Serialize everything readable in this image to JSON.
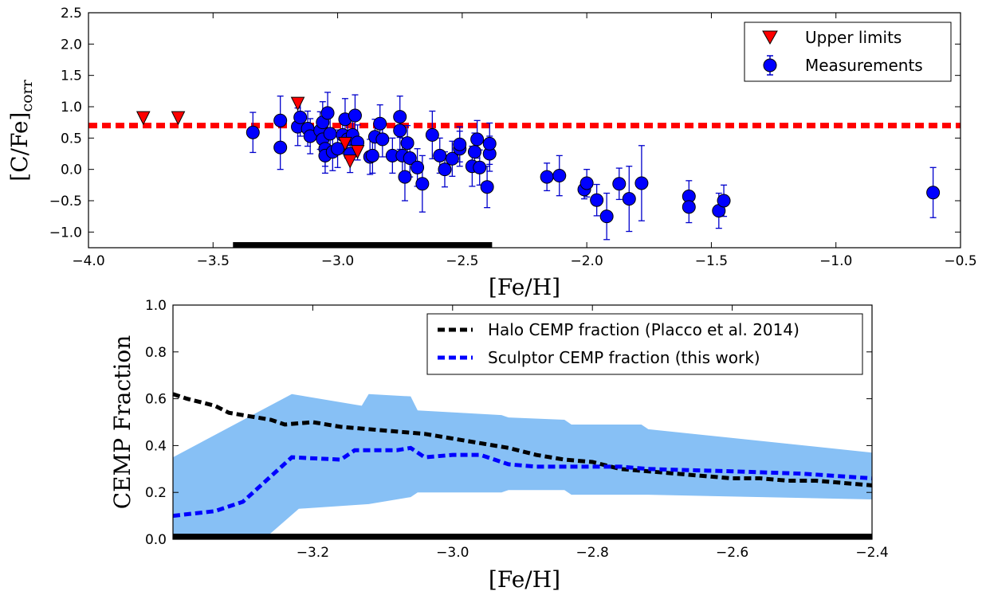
{
  "chart_data": [
    {
      "type": "scatter",
      "xlabel": "[Fe/H]",
      "ylabel": "[C/Fe]",
      "ylabel_sub": "corr",
      "xlim": [
        -4.0,
        -0.5
      ],
      "ylim": [
        -1.25,
        2.5
      ],
      "xticks": [
        "−4.0",
        "−3.5",
        "−3.0",
        "−2.5",
        "−2.0",
        "−1.5",
        "−1.0",
        "−0.5"
      ],
      "xtick_values": [
        -4.0,
        -3.5,
        -3.0,
        -2.5,
        -2.0,
        -1.5,
        -1.0,
        -0.5
      ],
      "yticks": [
        "−1.0",
        "−0.5",
        "0.0",
        "0.5",
        "1.0",
        "1.5",
        "2.0",
        "2.5"
      ],
      "ytick_values": [
        -1.0,
        -0.5,
        0.0,
        0.5,
        1.0,
        1.5,
        2.0,
        2.5
      ],
      "reference_line": {
        "y": 0.7,
        "style": "dashed",
        "color": "#ff0000"
      },
      "range_bar": {
        "x": [
          -3.42,
          -2.38
        ],
        "color": "#000000"
      },
      "legend": {
        "position": "top-right",
        "entries": [
          "Upper limits",
          "Measurements"
        ]
      },
      "series": [
        {
          "name": "Upper limits",
          "marker": "triangle-down",
          "color": "#ff0000",
          "points": [
            {
              "x": -3.78,
              "y": 0.82
            },
            {
              "x": -3.64,
              "y": 0.82
            },
            {
              "x": -3.16,
              "y": 1.05
            },
            {
              "x": -2.97,
              "y": 0.41
            },
            {
              "x": -2.95,
              "y": 0.13
            },
            {
              "x": -2.92,
              "y": 0.28
            }
          ]
        },
        {
          "name": "Measurements",
          "marker": "circle",
          "color": "#0000ff",
          "error_color": "#0000cc",
          "points": [
            {
              "x": -3.34,
              "y": 0.59,
              "err": 0.32
            },
            {
              "x": -3.23,
              "y": 0.78,
              "err": 0.39
            },
            {
              "x": -3.23,
              "y": 0.35,
              "err": 0.35
            },
            {
              "x": -3.16,
              "y": 0.68,
              "err": 0.3
            },
            {
              "x": -3.15,
              "y": 0.83,
              "err": 0.3
            },
            {
              "x": -3.12,
              "y": 0.65,
              "err": 0.28
            },
            {
              "x": -3.11,
              "y": 0.53,
              "err": 0.28
            },
            {
              "x": -3.07,
              "y": 0.62,
              "err": 0.3
            },
            {
              "x": -3.06,
              "y": 0.48,
              "err": 0.3
            },
            {
              "x": -3.06,
              "y": 0.75,
              "err": 0.33
            },
            {
              "x": -3.05,
              "y": 0.33,
              "err": 0.28
            },
            {
              "x": -3.05,
              "y": 0.22,
              "err": 0.28
            },
            {
              "x": -3.04,
              "y": 0.9,
              "err": 0.33
            },
            {
              "x": -3.03,
              "y": 0.57,
              "err": 0.3
            },
            {
              "x": -3.02,
              "y": 0.28,
              "err": 0.3
            },
            {
              "x": -3.0,
              "y": 0.33,
              "err": 0.3
            },
            {
              "x": -2.98,
              "y": 0.55,
              "err": 0.3
            },
            {
              "x": -2.97,
              "y": 0.8,
              "err": 0.33
            },
            {
              "x": -2.96,
              "y": 0.48,
              "err": 0.3
            },
            {
              "x": -2.95,
              "y": 0.25,
              "err": 0.3
            },
            {
              "x": -2.94,
              "y": 0.55,
              "err": 0.28
            },
            {
              "x": -2.93,
              "y": 0.86,
              "err": 0.33
            },
            {
              "x": -2.92,
              "y": 0.43,
              "err": 0.28
            },
            {
              "x": -2.87,
              "y": 0.2,
              "err": 0.28
            },
            {
              "x": -2.86,
              "y": 0.22,
              "err": 0.28
            },
            {
              "x": -2.85,
              "y": 0.52,
              "err": 0.28
            },
            {
              "x": -2.83,
              "y": 0.73,
              "err": 0.3
            },
            {
              "x": -2.82,
              "y": 0.48,
              "err": 0.28
            },
            {
              "x": -2.78,
              "y": 0.22,
              "err": 0.28
            },
            {
              "x": -2.75,
              "y": 0.84,
              "err": 0.33
            },
            {
              "x": -2.75,
              "y": 0.62,
              "err": 0.3
            },
            {
              "x": -2.74,
              "y": 0.22,
              "err": 0.28
            },
            {
              "x": -2.73,
              "y": -0.12,
              "err": 0.38
            },
            {
              "x": -2.72,
              "y": 0.42,
              "err": 0.28
            },
            {
              "x": -2.71,
              "y": 0.18,
              "err": 0.3
            },
            {
              "x": -2.68,
              "y": 0.03,
              "err": 0.3
            },
            {
              "x": -2.66,
              "y": -0.23,
              "err": 0.45
            },
            {
              "x": -2.62,
              "y": 0.55,
              "err": 0.38
            },
            {
              "x": -2.59,
              "y": 0.22,
              "err": 0.28
            },
            {
              "x": -2.57,
              "y": 0.0,
              "err": 0.28
            },
            {
              "x": -2.54,
              "y": 0.17,
              "err": 0.28
            },
            {
              "x": -2.51,
              "y": 0.33,
              "err": 0.28
            },
            {
              "x": -2.51,
              "y": 0.4,
              "err": 0.28
            },
            {
              "x": -2.46,
              "y": 0.05,
              "err": 0.32
            },
            {
              "x": -2.45,
              "y": 0.28,
              "err": 0.3
            },
            {
              "x": -2.44,
              "y": 0.48,
              "err": 0.3
            },
            {
              "x": -2.43,
              "y": 0.03,
              "err": 0.28
            },
            {
              "x": -2.4,
              "y": -0.28,
              "err": 0.33
            },
            {
              "x": -2.39,
              "y": 0.25,
              "err": 0.28
            },
            {
              "x": -2.39,
              "y": 0.41,
              "err": 0.33
            },
            {
              "x": -2.16,
              "y": -0.12,
              "err": 0.22
            },
            {
              "x": -2.11,
              "y": -0.1,
              "err": 0.32
            },
            {
              "x": -2.01,
              "y": -0.32,
              "err": 0.15
            },
            {
              "x": -2.0,
              "y": -0.22,
              "err": 0.22
            },
            {
              "x": -1.96,
              "y": -0.49,
              "err": 0.25
            },
            {
              "x": -1.92,
              "y": -0.75,
              "err": 0.37
            },
            {
              "x": -1.87,
              "y": -0.23,
              "err": 0.25
            },
            {
              "x": -1.83,
              "y": -0.47,
              "err": 0.52
            },
            {
              "x": -1.78,
              "y": -0.22,
              "err": 0.6
            },
            {
              "x": -1.59,
              "y": -0.43,
              "err": 0.25
            },
            {
              "x": -1.59,
              "y": -0.6,
              "err": 0.25
            },
            {
              "x": -1.47,
              "y": -0.66,
              "err": 0.28
            },
            {
              "x": -1.45,
              "y": -0.5,
              "err": 0.25
            },
            {
              "x": -0.61,
              "y": -0.37,
              "err": 0.4
            }
          ]
        }
      ]
    },
    {
      "type": "line",
      "xlabel": "[Fe/H]",
      "ylabel": "CEMP Fraction",
      "xlim": [
        -3.4,
        -2.4
      ],
      "ylim": [
        0.0,
        1.0
      ],
      "xticks": [
        "−3.2",
        "−3.0",
        "−2.8",
        "−2.6",
        "−2.4"
      ],
      "xtick_values": [
        -3.2,
        -3.0,
        -2.8,
        -2.6,
        -2.4
      ],
      "yticks": [
        "0.0",
        "0.2",
        "0.4",
        "0.6",
        "0.8",
        "1.0"
      ],
      "ytick_values": [
        0.0,
        0.2,
        0.4,
        0.6,
        0.8,
        1.0
      ],
      "legend": {
        "position": "top-right",
        "entries": [
          "Halo CEMP fraction (Placco et al. 2014)",
          "Sculptor CEMP fraction (this work)"
        ]
      },
      "band": {
        "color": "#87c0f5",
        "upper": [
          [
            -3.4,
            0.35
          ],
          [
            -3.23,
            0.62
          ],
          [
            -3.13,
            0.57
          ],
          [
            -3.12,
            0.62
          ],
          [
            -3.06,
            0.61
          ],
          [
            -3.05,
            0.55
          ],
          [
            -2.93,
            0.53
          ],
          [
            -2.92,
            0.52
          ],
          [
            -2.84,
            0.51
          ],
          [
            -2.83,
            0.49
          ],
          [
            -2.73,
            0.49
          ],
          [
            -2.72,
            0.47
          ],
          [
            -2.4,
            0.37
          ]
        ],
        "lower": [
          [
            -3.4,
            0.0
          ],
          [
            -3.27,
            0.0
          ],
          [
            -3.22,
            0.13
          ],
          [
            -3.12,
            0.15
          ],
          [
            -3.06,
            0.18
          ],
          [
            -3.05,
            0.2
          ],
          [
            -2.93,
            0.2
          ],
          [
            -2.92,
            0.21
          ],
          [
            -2.84,
            0.21
          ],
          [
            -2.83,
            0.19
          ],
          [
            -2.73,
            0.19
          ],
          [
            -2.72,
            0.19
          ],
          [
            -2.4,
            0.17
          ]
        ]
      },
      "range_bar": {
        "x": [
          -3.4,
          -2.4
        ],
        "color": "#000000"
      },
      "series": [
        {
          "name": "Halo CEMP fraction (Placco et al. 2014)",
          "color": "#000000",
          "style": "dashed",
          "x": [
            -3.4,
            -3.38,
            -3.34,
            -3.32,
            -3.3,
            -3.28,
            -3.26,
            -3.24,
            -3.2,
            -3.16,
            -3.12,
            -3.08,
            -3.04,
            -3.0,
            -2.96,
            -2.92,
            -2.88,
            -2.84,
            -2.8,
            -2.76,
            -2.72,
            -2.68,
            -2.64,
            -2.6,
            -2.56,
            -2.52,
            -2.48,
            -2.44,
            -2.4
          ],
          "values": [
            0.62,
            0.6,
            0.57,
            0.54,
            0.53,
            0.52,
            0.51,
            0.49,
            0.5,
            0.48,
            0.47,
            0.46,
            0.45,
            0.43,
            0.41,
            0.39,
            0.36,
            0.34,
            0.33,
            0.3,
            0.29,
            0.28,
            0.27,
            0.26,
            0.26,
            0.25,
            0.25,
            0.24,
            0.23
          ]
        },
        {
          "name": "Sculptor CEMP fraction (this work)",
          "color": "#0000ff",
          "style": "dashed",
          "x": [
            -3.4,
            -3.34,
            -3.3,
            -3.23,
            -3.16,
            -3.14,
            -3.08,
            -3.06,
            -3.04,
            -3.0,
            -2.96,
            -2.94,
            -2.92,
            -2.88,
            -2.84,
            -2.8,
            -2.76,
            -2.72,
            -2.6,
            -2.5,
            -2.4
          ],
          "values": [
            0.1,
            0.12,
            0.16,
            0.35,
            0.34,
            0.38,
            0.38,
            0.39,
            0.35,
            0.36,
            0.36,
            0.34,
            0.32,
            0.31,
            0.31,
            0.31,
            0.31,
            0.3,
            0.29,
            0.28,
            0.26
          ]
        }
      ]
    }
  ]
}
